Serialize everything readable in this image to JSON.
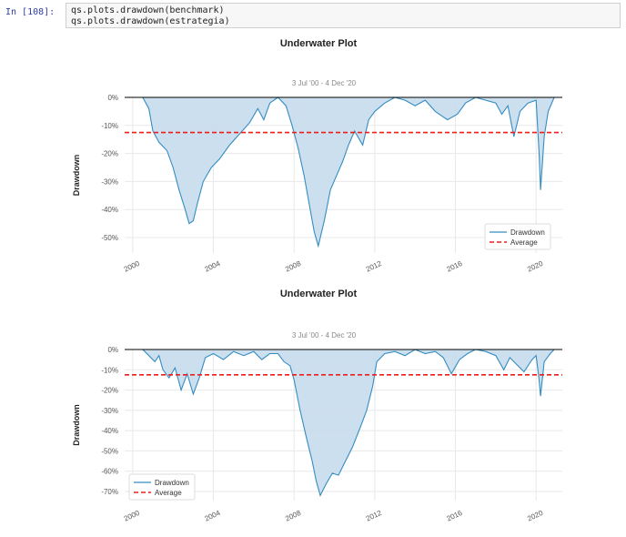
{
  "cell": {
    "prompt": "In [108]:",
    "code_lines": [
      "qs.plots.drawdown(benchmark)",
      "qs.plots.drawdown(estrategia)"
    ]
  },
  "colors": {
    "line": "#348dc1",
    "fill": "#c6dcec",
    "average": "#ee1c1c",
    "zero_line": "#000000",
    "grid": "#e8e8e8",
    "tick_text": "#555555",
    "title_text": "#222222",
    "subtitle_text": "#888888"
  },
  "chart_data": [
    {
      "type": "area",
      "title": "Underwater Plot",
      "subtitle": "3 Jul '00 -  4 Dec '20",
      "ylabel": "Drawdown",
      "xlabel": "",
      "xlim": [
        1999.6,
        2021.3
      ],
      "ylim": [
        -0.555,
        0
      ],
      "x_ticks": [
        2000,
        2004,
        2008,
        2012,
        2016,
        2020
      ],
      "x_tick_labels": [
        "2000",
        "2004",
        "2008",
        "2012",
        "2016",
        "2020"
      ],
      "y_ticks": [
        0,
        -0.1,
        -0.2,
        -0.3,
        -0.4,
        -0.5
      ],
      "y_tick_labels": [
        "0%",
        "-10%",
        "-20%",
        "-30%",
        "-40%",
        "-50%"
      ],
      "grid": true,
      "legend_position": "bottom-right",
      "legend": [
        "Drawdown",
        "Average"
      ],
      "average": -0.125,
      "series": [
        {
          "name": "Drawdown",
          "x": [
            2000.5,
            2000.8,
            2001.0,
            2001.3,
            2001.7,
            2002.0,
            2002.3,
            2002.6,
            2002.8,
            2003.0,
            2003.2,
            2003.5,
            2003.9,
            2004.3,
            2004.8,
            2005.3,
            2005.8,
            2006.2,
            2006.5,
            2006.8,
            2007.2,
            2007.6,
            2007.9,
            2008.2,
            2008.5,
            2008.8,
            2009.0,
            2009.2,
            2009.5,
            2009.8,
            2010.1,
            2010.4,
            2010.7,
            2011.0,
            2011.4,
            2011.7,
            2012.0,
            2012.5,
            2013.0,
            2013.5,
            2014.0,
            2014.5,
            2015.0,
            2015.6,
            2016.1,
            2016.5,
            2017.0,
            2017.5,
            2018.0,
            2018.3,
            2018.6,
            2018.9,
            2019.2,
            2019.6,
            2020.0,
            2020.15,
            2020.22,
            2020.4,
            2020.6,
            2020.9
          ],
          "y": [
            0,
            -0.04,
            -0.12,
            -0.16,
            -0.19,
            -0.25,
            -0.33,
            -0.4,
            -0.45,
            -0.44,
            -0.38,
            -0.3,
            -0.25,
            -0.22,
            -0.17,
            -0.13,
            -0.09,
            -0.04,
            -0.08,
            -0.02,
            0,
            -0.03,
            -0.1,
            -0.18,
            -0.28,
            -0.4,
            -0.48,
            -0.53,
            -0.44,
            -0.33,
            -0.28,
            -0.23,
            -0.17,
            -0.12,
            -0.17,
            -0.08,
            -0.05,
            -0.02,
            0,
            -0.01,
            -0.03,
            -0.01,
            -0.05,
            -0.08,
            -0.06,
            -0.02,
            0,
            -0.01,
            -0.02,
            -0.06,
            -0.03,
            -0.14,
            -0.05,
            -0.02,
            -0.01,
            -0.2,
            -0.33,
            -0.14,
            -0.05,
            0
          ]
        }
      ]
    },
    {
      "type": "area",
      "title": "Underwater Plot",
      "subtitle": "3 Jul '00 -  4 Dec '20",
      "ylabel": "Drawdown",
      "xlabel": "",
      "xlim": [
        1999.6,
        2021.3
      ],
      "ylim": [
        -0.745,
        0
      ],
      "x_ticks": [
        2000,
        2004,
        2008,
        2012,
        2016,
        2020
      ],
      "x_tick_labels": [
        "2000",
        "2004",
        "2008",
        "2012",
        "2016",
        "2020"
      ],
      "y_ticks": [
        0,
        -0.1,
        -0.2,
        -0.3,
        -0.4,
        -0.5,
        -0.6,
        -0.7
      ],
      "y_tick_labels": [
        "0%",
        "-10%",
        "-20%",
        "-30%",
        "-40%",
        "-50%",
        "-60%",
        "-70%"
      ],
      "grid": true,
      "legend_position": "bottom-left",
      "legend": [
        "Drawdown",
        "Average"
      ],
      "average": -0.125,
      "series": [
        {
          "name": "Drawdown",
          "x": [
            2000.5,
            2000.8,
            2001.1,
            2001.3,
            2001.5,
            2001.8,
            2002.1,
            2002.4,
            2002.7,
            2003.0,
            2003.3,
            2003.6,
            2004.0,
            2004.5,
            2005.0,
            2005.5,
            2006.0,
            2006.4,
            2006.8,
            2007.2,
            2007.5,
            2007.8,
            2008.0,
            2008.3,
            2008.6,
            2008.9,
            2009.1,
            2009.3,
            2009.6,
            2009.9,
            2010.2,
            2010.5,
            2010.9,
            2011.3,
            2011.6,
            2011.9,
            2012.1,
            2012.5,
            2013.0,
            2013.5,
            2014.0,
            2014.5,
            2015.0,
            2015.4,
            2015.8,
            2016.2,
            2016.6,
            2017.0,
            2017.5,
            2018.0,
            2018.4,
            2018.7,
            2019.0,
            2019.4,
            2019.8,
            2020.0,
            2020.15,
            2020.22,
            2020.4,
            2020.7,
            2020.9
          ],
          "y": [
            0,
            -0.03,
            -0.06,
            -0.03,
            -0.1,
            -0.14,
            -0.09,
            -0.2,
            -0.12,
            -0.22,
            -0.14,
            -0.04,
            -0.02,
            -0.05,
            -0.01,
            -0.03,
            -0.01,
            -0.05,
            -0.02,
            -0.02,
            -0.06,
            -0.08,
            -0.15,
            -0.3,
            -0.43,
            -0.55,
            -0.65,
            -0.72,
            -0.66,
            -0.61,
            -0.62,
            -0.56,
            -0.48,
            -0.38,
            -0.3,
            -0.18,
            -0.06,
            -0.02,
            -0.01,
            -0.03,
            0,
            -0.02,
            -0.01,
            -0.04,
            -0.12,
            -0.05,
            -0.02,
            0,
            -0.01,
            -0.03,
            -0.1,
            -0.04,
            -0.07,
            -0.11,
            -0.05,
            -0.03,
            -0.15,
            -0.23,
            -0.06,
            -0.02,
            0
          ]
        }
      ]
    }
  ]
}
